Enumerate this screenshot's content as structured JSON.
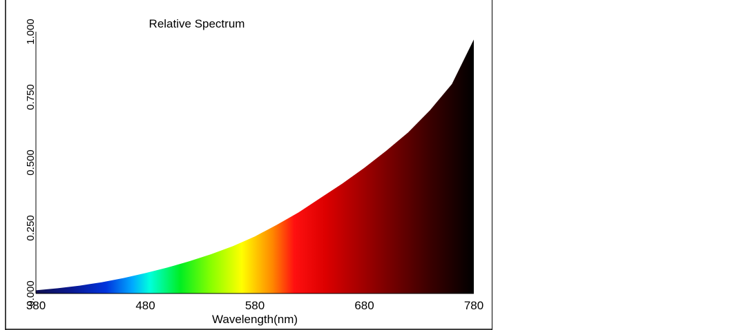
{
  "chart_data": {
    "type": "area",
    "title": "Relative Spectrum",
    "xlabel": "Wavelength(nm)",
    "ylabel": "",
    "xlim": [
      380,
      780
    ],
    "ylim": [
      0,
      1.0
    ],
    "x_ticks": [
      "380",
      "480",
      "580",
      "680",
      "780"
    ],
    "y_ticks": [
      "0.000",
      "0.250",
      "0.500",
      "0.750",
      "1.000"
    ],
    "grid": false,
    "fill": "visible-spectrum color gradient",
    "x": [
      380,
      400,
      420,
      440,
      460,
      480,
      500,
      520,
      540,
      560,
      580,
      600,
      620,
      640,
      660,
      680,
      700,
      720,
      740,
      760,
      780
    ],
    "values": [
      0.012,
      0.02,
      0.03,
      0.043,
      0.059,
      0.078,
      0.099,
      0.123,
      0.15,
      0.181,
      0.218,
      0.262,
      0.31,
      0.365,
      0.42,
      0.48,
      0.545,
      0.615,
      0.7,
      0.8,
      0.97
    ]
  }
}
